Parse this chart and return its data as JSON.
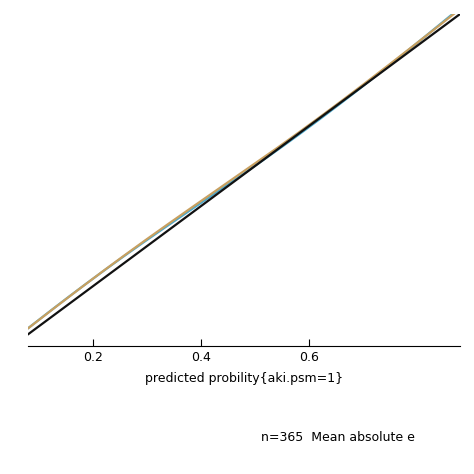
{
  "xlabel": "predicted probility{aki.psm=1}",
  "annotation": "n=365  Mean absolute e",
  "xlim": [
    0.08,
    0.88
  ],
  "ylim": [
    0.05,
    0.88
  ],
  "plot_xlim": [
    0.08,
    0.88
  ],
  "plot_ylim": [
    0.05,
    0.88
  ],
  "xticks": [
    0.2,
    0.4,
    0.6
  ],
  "bg_color": "#ffffff",
  "line_diagonal_color": "#111111",
  "line_apparent_color": "#4aa8cc",
  "line_corrected_color": "#c8a060",
  "line_width": 1.6,
  "xlabel_fontsize": 9,
  "annotation_fontsize": 9,
  "tick_fontsize": 9
}
